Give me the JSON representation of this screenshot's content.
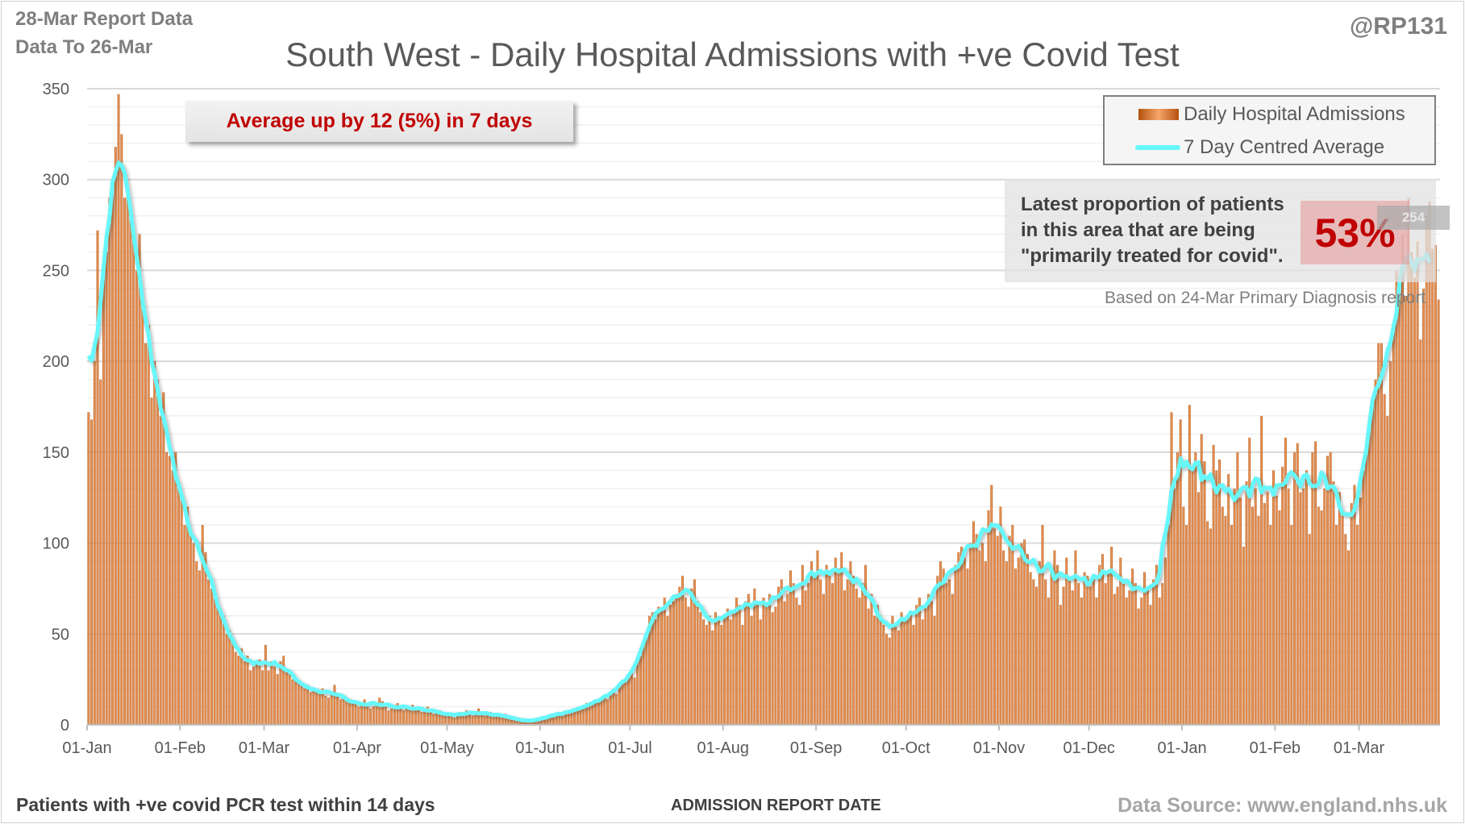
{
  "header": {
    "report_line": "28-Mar Report Data",
    "data_to_line": "Data To 26-Mar",
    "handle": "@RP131"
  },
  "annotation": {
    "average_change": "Average up by 12 (5%) in 7 days"
  },
  "proportion_box": {
    "text_line1": "Latest proportion of patients",
    "text_line2": "in this area that are being",
    "text_line3": "\"primarily treated for covid\".",
    "percentage": "53%",
    "source_note": "Based on 24-Mar Primary Diagnosis report"
  },
  "footer": {
    "left": "Patients with +ve covid PCR test within 14 days",
    "center": "ADMISSION  REPORT DATE",
    "right": "Data Source: www.england.nhs.uk"
  },
  "colors": {
    "bars_dark": "#b4520f",
    "bars_light": "#f6a56a",
    "average_line": "#66f7fb",
    "accent_red": "#c00000"
  },
  "chart_data": {
    "type": "bar",
    "title": "South West - Daily Hospital Admissions with +ve Covid Test",
    "xlabel": "ADMISSION  REPORT DATE",
    "ylabel": "",
    "ylim": [
      0,
      350
    ],
    "yticks": [
      0,
      50,
      100,
      150,
      200,
      250,
      300,
      350
    ],
    "grid": true,
    "legend_position": "top-right",
    "x_start": "01-Jan-2021",
    "x_end": "26-Mar-2022",
    "xtick_labels": [
      "01-Jan",
      "01-Feb",
      "01-Mar",
      "01-Apr",
      "01-May",
      "01-Jun",
      "01-Jul",
      "01-Aug",
      "01-Sep",
      "01-Oct",
      "01-Nov",
      "01-Dec",
      "01-Jan",
      "01-Feb",
      "01-Mar"
    ],
    "xtick_day_index": [
      0,
      31,
      59,
      90,
      120,
      151,
      181,
      212,
      243,
      273,
      304,
      334,
      365,
      396,
      424
    ],
    "latest_average_label": "254",
    "series": [
      {
        "name": "Daily Hospital Admissions",
        "type": "bar",
        "values": [
          172,
          168,
          200,
          272,
          190,
          250,
          260,
          290,
          300,
          318,
          347,
          325,
          290,
          295,
          280,
          270,
          250,
          270,
          230,
          210,
          220,
          180,
          200,
          190,
          170,
          183,
          150,
          148,
          140,
          150,
          130,
          128,
          110,
          120,
          105,
          100,
          90,
          85,
          110,
          95,
          80,
          75,
          70,
          65,
          62,
          60,
          50,
          52,
          45,
          40,
          38,
          42,
          35,
          38,
          30,
          32,
          33,
          36,
          30,
          44,
          30,
          35,
          32,
          28,
          35,
          38,
          30,
          28,
          25,
          26,
          24,
          22,
          20,
          22,
          18,
          20,
          18,
          19,
          20,
          16,
          15,
          18,
          22,
          17,
          14,
          16,
          14,
          13,
          12,
          12,
          10,
          12,
          14,
          11,
          9,
          10,
          12,
          15,
          13,
          10,
          8,
          9,
          11,
          12,
          10,
          8,
          9,
          10,
          11,
          9,
          8,
          7,
          9,
          10,
          8,
          6,
          7,
          8,
          7,
          5,
          6,
          5,
          4,
          6,
          7,
          5,
          8,
          6,
          5,
          7,
          9,
          6,
          5,
          6,
          7,
          5,
          6,
          5,
          4,
          6,
          5,
          4,
          3,
          3,
          2,
          2,
          3,
          2,
          2,
          3,
          2,
          3,
          4,
          5,
          6,
          4,
          6,
          7,
          5,
          8,
          6,
          7,
          9,
          8,
          10,
          9,
          12,
          10,
          11,
          14,
          13,
          15,
          16,
          14,
          18,
          20,
          17,
          22,
          24,
          25,
          28,
          30,
          26,
          35,
          38,
          45,
          50,
          60,
          62,
          58,
          65,
          64,
          70,
          60,
          66,
          68,
          72,
          76,
          82,
          70,
          65,
          75,
          80,
          68,
          62,
          58,
          55,
          60,
          52,
          62,
          58,
          55,
          60,
          64,
          58,
          62,
          70,
          66,
          55,
          68,
          72,
          60,
          75,
          68,
          58,
          70,
          66,
          72,
          62,
          65,
          76,
          80,
          68,
          72,
          85,
          78,
          70,
          66,
          88,
          74,
          78,
          90,
          82,
          96,
          80,
          72,
          88,
          85,
          78,
          92,
          86,
          95,
          74,
          80,
          90,
          82,
          75,
          70,
          78,
          88,
          64,
          72,
          60,
          66,
          58,
          55,
          50,
          48,
          60,
          55,
          52,
          62,
          58,
          60,
          62,
          55,
          66,
          70,
          58,
          64,
          72,
          68,
          60,
          82,
          90,
          86,
          78,
          80,
          72,
          88,
          95,
          98,
          92,
          86,
          100,
          112,
          105,
          96,
          100,
          90,
          118,
          132,
          108,
          104,
          120,
          96,
          90,
          104,
          110,
          86,
          92,
          100,
          102,
          94,
          84,
          80,
          76,
          90,
          110,
          80,
          70,
          86,
          96,
          88,
          66,
          76,
          92,
          80,
          74,
          96,
          78,
          70,
          84,
          82,
          76,
          80,
          70,
          88,
          94,
          78,
          84,
          98,
          72,
          76,
          92,
          80,
          70,
          74,
          86,
          78,
          64,
          70,
          84,
          74,
          66,
          80,
          88,
          70,
          78,
          92,
          110,
          172,
          130,
          150,
          168,
          120,
          110,
          176,
          140,
          150,
          128,
          160,
          145,
          112,
          108,
          154,
          140,
          146,
          120,
          115,
          138,
          110,
          130,
          150,
          125,
          98,
          134,
          158,
          120,
          130,
          115,
          170,
          122,
          128,
          110,
          140,
          126,
          118,
          142,
          158,
          130,
          110,
          150,
          155,
          128,
          130,
          140,
          105,
          150,
          156,
          120,
          118,
          130,
          148,
          150,
          134,
          110,
          128,
          118,
          105,
          96,
          122,
          132,
          110,
          125,
          140,
          150,
          168,
          180,
          190,
          210,
          210,
          182,
          170,
          200,
          220,
          250,
          240,
          270,
          236,
          290,
          260,
          246,
          266,
          212,
          240,
          280,
          288,
          262,
          264,
          234
        ]
      },
      {
        "name": "7 Day Centred Average",
        "type": "line",
        "derived_from": "Daily Hospital Admissions"
      }
    ]
  }
}
